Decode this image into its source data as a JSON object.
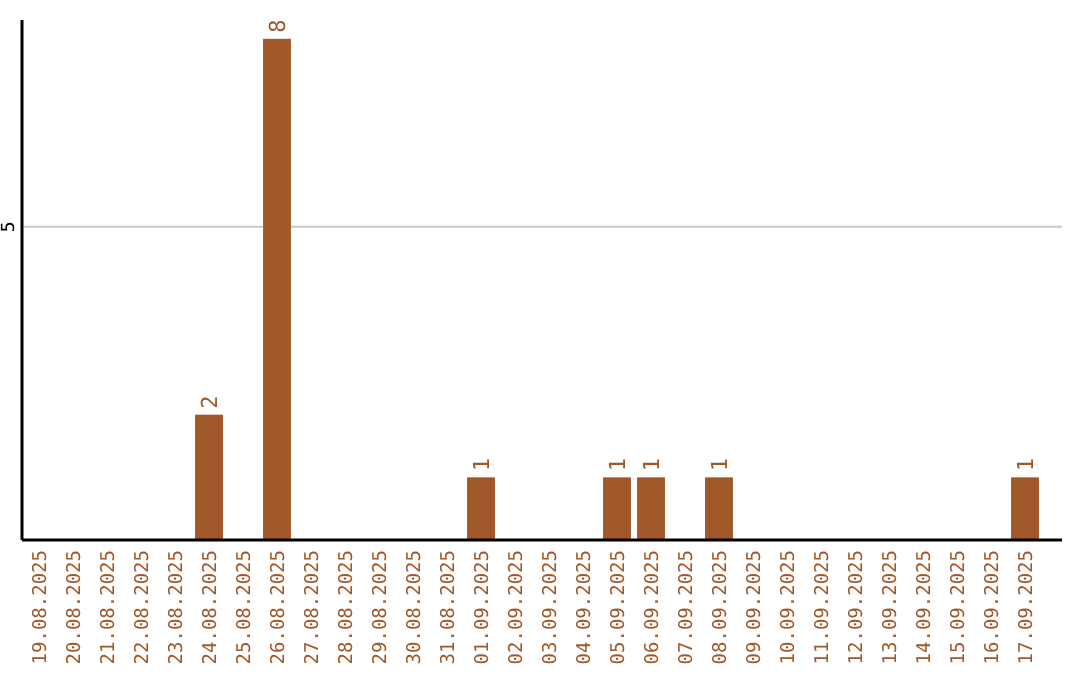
{
  "chart_data": {
    "type": "bar",
    "categories": [
      "19.08.2025",
      "20.08.2025",
      "21.08.2025",
      "22.08.2025",
      "23.08.2025",
      "24.08.2025",
      "25.08.2025",
      "26.08.2025",
      "27.08.2025",
      "28.08.2025",
      "29.08.2025",
      "30.08.2025",
      "31.08.2025",
      "01.09.2025",
      "02.09.2025",
      "03.09.2025",
      "04.09.2025",
      "05.09.2025",
      "06.09.2025",
      "07.09.2025",
      "08.09.2025",
      "09.09.2025",
      "10.09.2025",
      "11.09.2025",
      "12.09.2025",
      "13.09.2025",
      "14.09.2025",
      "15.09.2025",
      "16.09.2025",
      "17.09.2025"
    ],
    "values": [
      0,
      0,
      0,
      0,
      0,
      2,
      0,
      8,
      0,
      0,
      0,
      0,
      0,
      1,
      0,
      0,
      0,
      1,
      1,
      0,
      1,
      0,
      0,
      0,
      0,
      0,
      0,
      0,
      0,
      1
    ],
    "value_labels": [
      null,
      null,
      null,
      null,
      null,
      "2",
      null,
      "8",
      null,
      null,
      null,
      null,
      null,
      "1",
      null,
      null,
      null,
      "1",
      "1",
      null,
      "1",
      null,
      null,
      null,
      null,
      null,
      null,
      null,
      null,
      "1"
    ],
    "color": "#a0582a",
    "ylim": [
      0,
      8
    ],
    "yticks": [
      5
    ],
    "grid": "y"
  }
}
